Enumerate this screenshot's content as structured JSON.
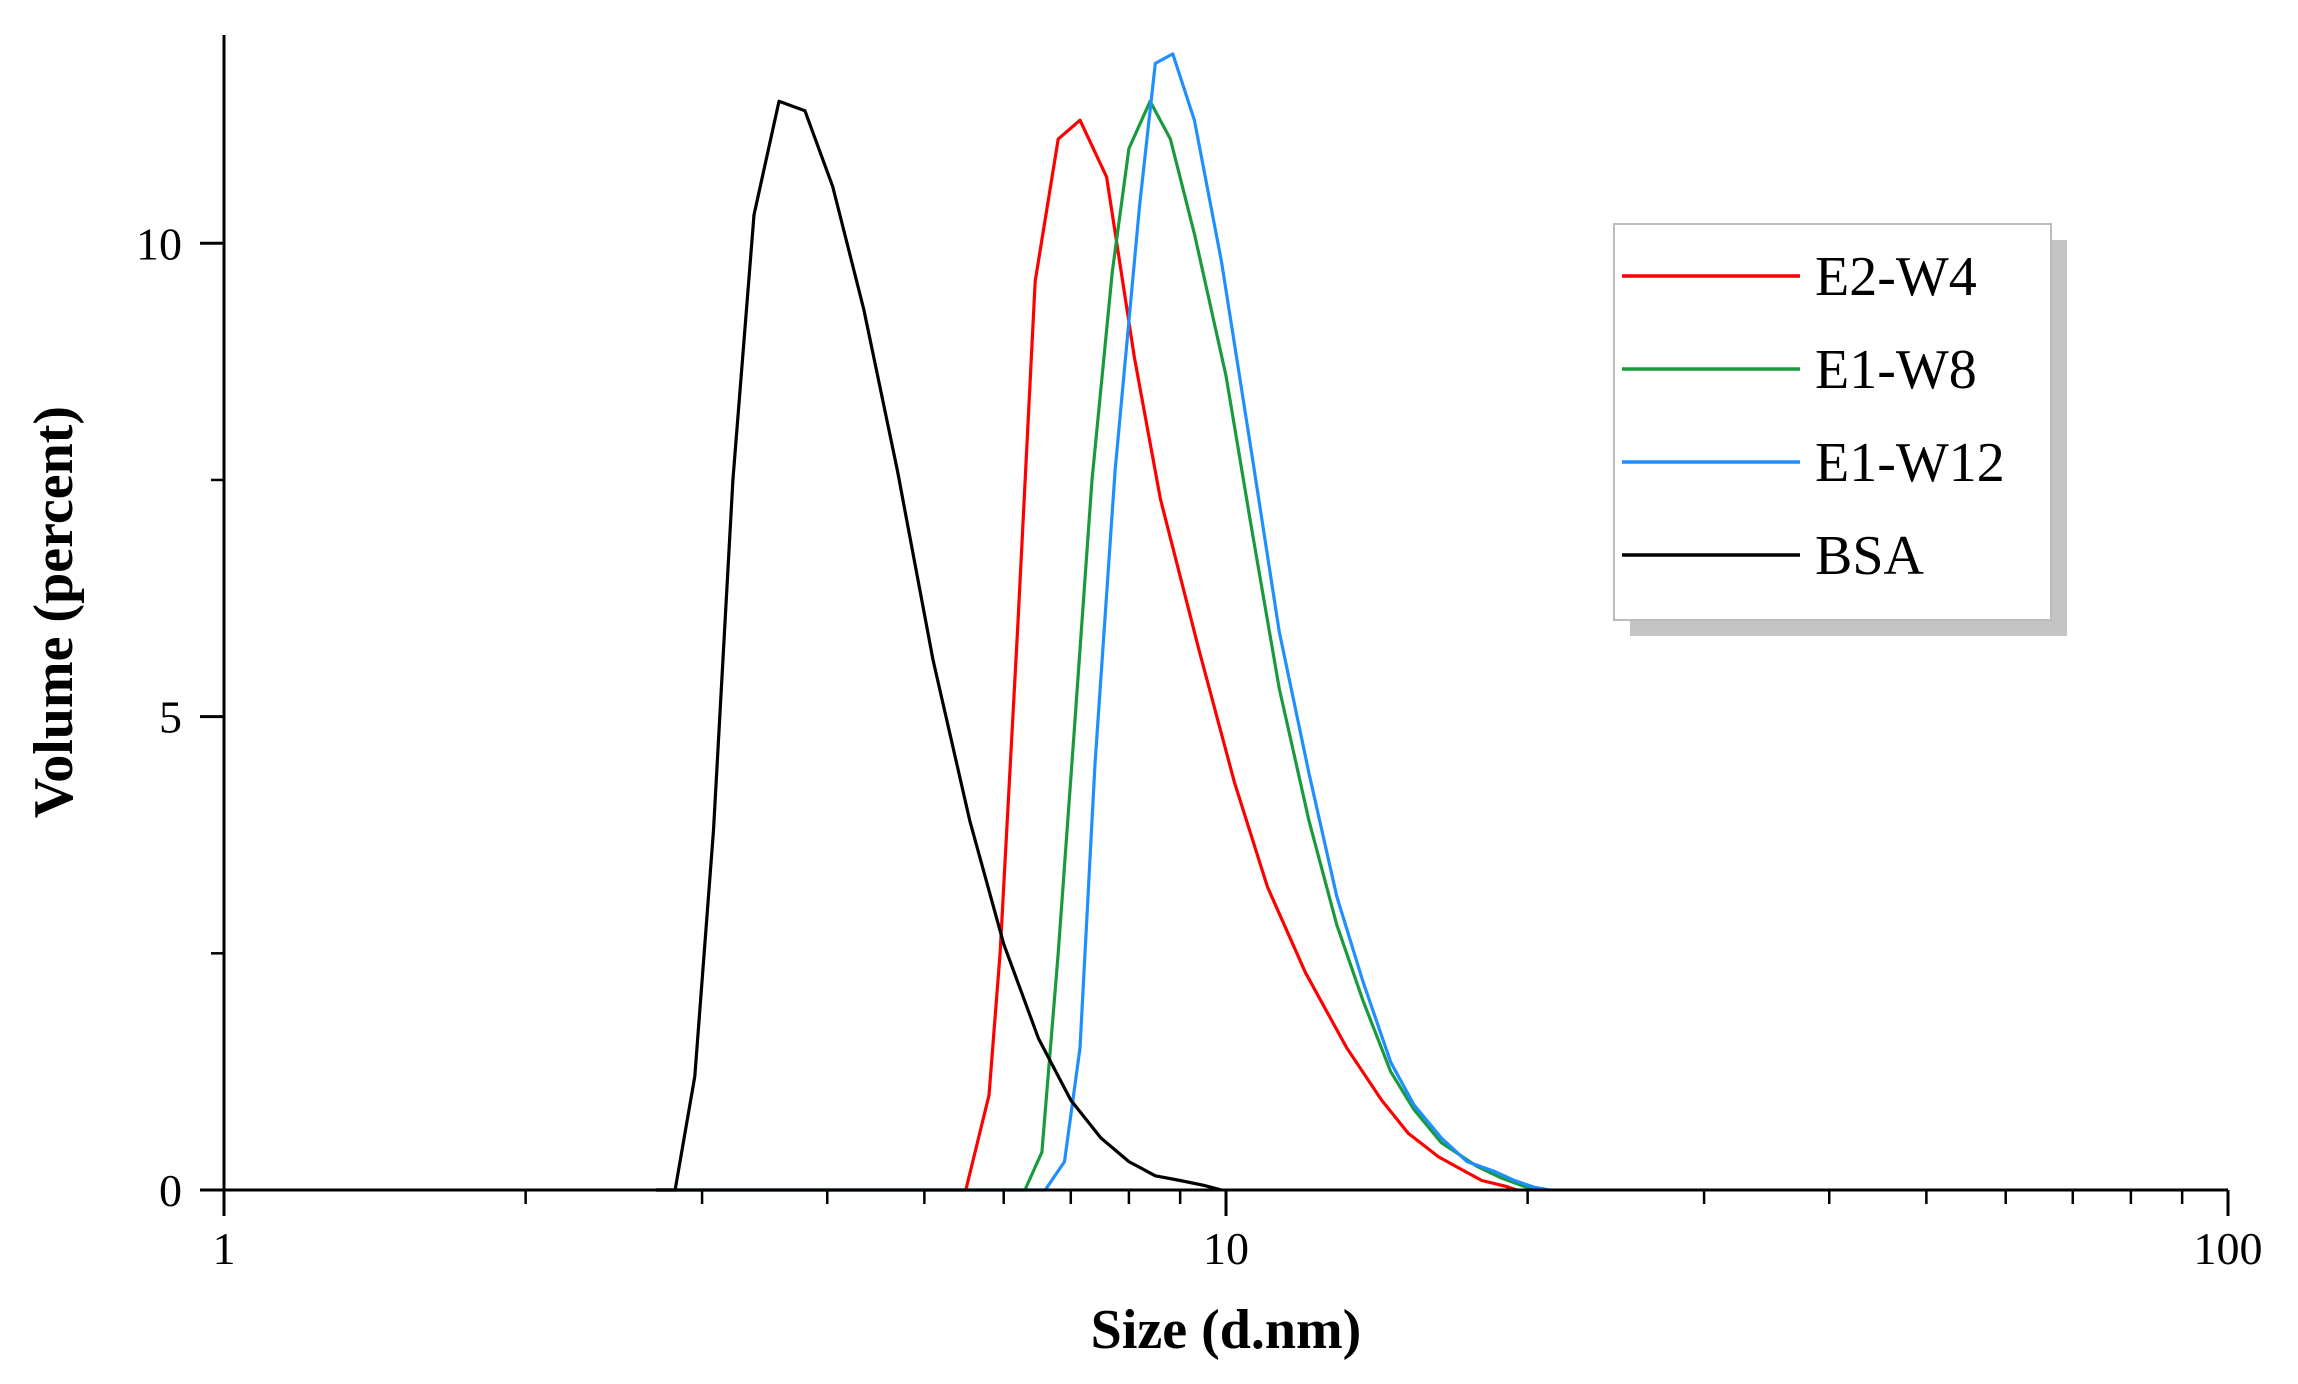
{
  "chart_data": {
    "type": "line",
    "title": "",
    "xlabel": "Size (d.nm)",
    "ylabel": "Volume (percent)",
    "xscale": "log",
    "xlim": [
      1,
      100
    ],
    "ylim": [
      0,
      12.2
    ],
    "xticks": [
      1,
      10,
      100
    ],
    "xtick_labels": [
      "1",
      "10",
      "100"
    ],
    "yticks": [
      0,
      5,
      10
    ],
    "ytick_labels": [
      "0",
      "5",
      "10"
    ],
    "grid": false,
    "legend_position": "top-right",
    "series": [
      {
        "name": "E2-W4",
        "color": "#ff0000",
        "points": [
          [
            2.7,
            0
          ],
          [
            5.5,
            0
          ],
          [
            5.8,
            1.0
          ],
          [
            5.95,
            2.5
          ],
          [
            6.2,
            6.0
          ],
          [
            6.45,
            9.6
          ],
          [
            6.8,
            11.1
          ],
          [
            7.15,
            11.3
          ],
          [
            7.6,
            10.7
          ],
          [
            8.1,
            8.8
          ],
          [
            8.6,
            7.3
          ],
          [
            9.4,
            5.7
          ],
          [
            10.2,
            4.3
          ],
          [
            11.0,
            3.2
          ],
          [
            12.0,
            2.3
          ],
          [
            13.2,
            1.5
          ],
          [
            14.3,
            0.95
          ],
          [
            15.2,
            0.6
          ],
          [
            16.3,
            0.35
          ],
          [
            17.3,
            0.2
          ],
          [
            18.0,
            0.1
          ],
          [
            19.0,
            0.04
          ],
          [
            19.5,
            0
          ]
        ]
      },
      {
        "name": "E1-W8",
        "color": "#1a9a3e",
        "points": [
          [
            2.7,
            0
          ],
          [
            6.3,
            0
          ],
          [
            6.55,
            0.4
          ],
          [
            6.8,
            2.5
          ],
          [
            7.05,
            4.8
          ],
          [
            7.35,
            7.5
          ],
          [
            7.7,
            9.7
          ],
          [
            8.0,
            11.0
          ],
          [
            8.4,
            11.5
          ],
          [
            8.8,
            11.1
          ],
          [
            9.3,
            10.1
          ],
          [
            10.0,
            8.6
          ],
          [
            10.6,
            7.0
          ],
          [
            11.3,
            5.3
          ],
          [
            12.1,
            3.9
          ],
          [
            12.9,
            2.8
          ],
          [
            13.7,
            2.0
          ],
          [
            14.6,
            1.25
          ],
          [
            15.4,
            0.85
          ],
          [
            16.4,
            0.5
          ],
          [
            17.8,
            0.25
          ],
          [
            18.8,
            0.13
          ],
          [
            19.7,
            0.05
          ],
          [
            20.4,
            0
          ]
        ]
      },
      {
        "name": "E1-W12",
        "color": "#1f8fff",
        "points": [
          [
            2.7,
            0
          ],
          [
            6.6,
            0
          ],
          [
            6.9,
            0.3
          ],
          [
            7.15,
            1.5
          ],
          [
            7.4,
            4.5
          ],
          [
            7.75,
            7.6
          ],
          [
            8.2,
            10.4
          ],
          [
            8.5,
            11.9
          ],
          [
            8.85,
            12.0
          ],
          [
            9.3,
            11.3
          ],
          [
            9.9,
            9.8
          ],
          [
            10.6,
            7.8
          ],
          [
            11.3,
            5.9
          ],
          [
            12.1,
            4.4
          ],
          [
            12.9,
            3.1
          ],
          [
            13.7,
            2.2
          ],
          [
            14.6,
            1.35
          ],
          [
            15.4,
            0.9
          ],
          [
            16.4,
            0.55
          ],
          [
            17.4,
            0.3
          ],
          [
            18.5,
            0.2
          ],
          [
            19.4,
            0.1
          ],
          [
            20.3,
            0.03
          ],
          [
            21.0,
            0
          ]
        ]
      },
      {
        "name": "BSA",
        "color": "#000000",
        "points": [
          [
            2.7,
            0
          ],
          [
            2.82,
            0
          ],
          [
            2.95,
            1.2
          ],
          [
            3.08,
            3.8
          ],
          [
            3.22,
            7.5
          ],
          [
            3.38,
            10.3
          ],
          [
            3.58,
            11.5
          ],
          [
            3.8,
            11.4
          ],
          [
            4.05,
            10.6
          ],
          [
            4.35,
            9.3
          ],
          [
            4.7,
            7.6
          ],
          [
            5.1,
            5.6
          ],
          [
            5.55,
            3.9
          ],
          [
            6.0,
            2.6
          ],
          [
            6.5,
            1.6
          ],
          [
            7.0,
            0.95
          ],
          [
            7.5,
            0.55
          ],
          [
            8.0,
            0.3
          ],
          [
            8.5,
            0.15
          ],
          [
            9.0,
            0.1
          ],
          [
            9.5,
            0.05
          ],
          [
            9.9,
            0
          ]
        ]
      }
    ]
  }
}
